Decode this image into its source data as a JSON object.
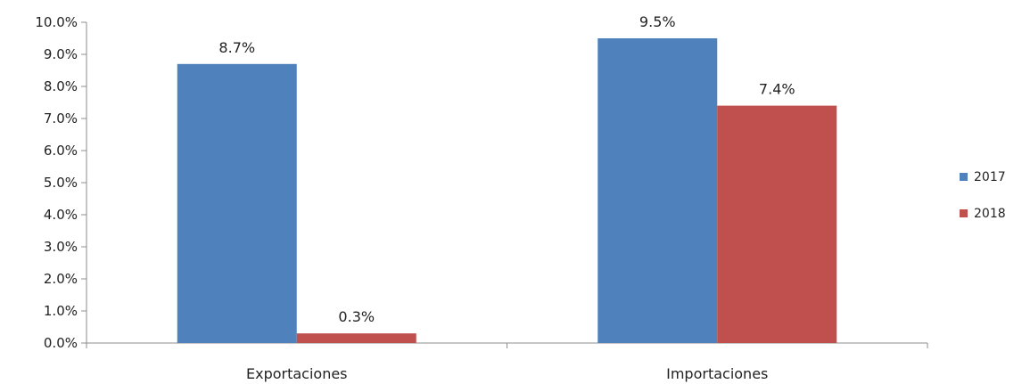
{
  "chart_data": {
    "type": "bar",
    "categories": [
      "Exportaciones",
      "Importaciones"
    ],
    "series": [
      {
        "name": "2017",
        "values": [
          8.7,
          9.5
        ],
        "color": "#4F81BD",
        "labels": [
          "8.7%",
          "9.5%"
        ]
      },
      {
        "name": "2018",
        "values": [
          0.3,
          7.4
        ],
        "color": "#C0504D",
        "labels": [
          "0.3%",
          "7.4%"
        ]
      }
    ],
    "y_ticks": [
      "0.0%",
      "1.0%",
      "2.0%",
      "3.0%",
      "4.0%",
      "5.0%",
      "6.0%",
      "7.0%",
      "8.0%",
      "9.0%",
      "10.0%"
    ],
    "ylim": [
      0,
      10
    ],
    "grid": false,
    "legend_position": "right"
  }
}
